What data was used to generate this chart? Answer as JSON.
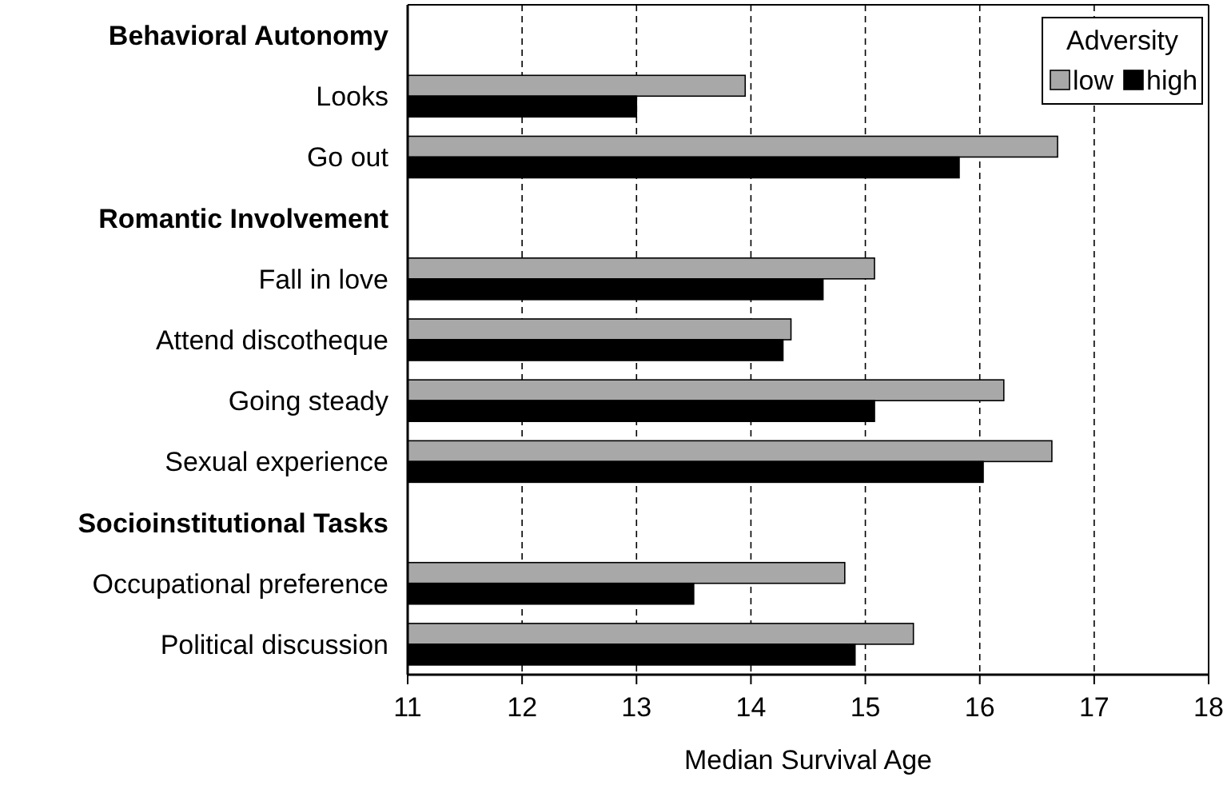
{
  "chart_data": {
    "type": "bar",
    "orientation": "horizontal",
    "xlabel": "Median Survival Age",
    "legend_title": "Adversity",
    "legend": "top right",
    "grid": "x",
    "categories": [
      "Behavioral Autonomy",
      "Looks",
      "Go out",
      "Romantic Involvement",
      "Fall in love",
      "Attend discotheque",
      "Going steady",
      "Sexual experience",
      "Socioinstitutional Tasks",
      "Occupational preference",
      "Political discussion"
    ],
    "series": [
      {
        "name": "low",
        "color": "#a8a8a8",
        "values": [
          null,
          13.95,
          16.68,
          null,
          15.08,
          14.35,
          16.21,
          16.63,
          null,
          14.82,
          15.42
        ]
      },
      {
        "name": "high",
        "color": "#000000",
        "values": [
          null,
          13.0,
          15.82,
          null,
          14.63,
          14.28,
          15.08,
          16.03,
          null,
          13.5,
          14.91
        ]
      }
    ],
    "xlim": [
      11,
      18
    ],
    "xticks": [
      11,
      12,
      13,
      14,
      15,
      16,
      17,
      18
    ]
  }
}
